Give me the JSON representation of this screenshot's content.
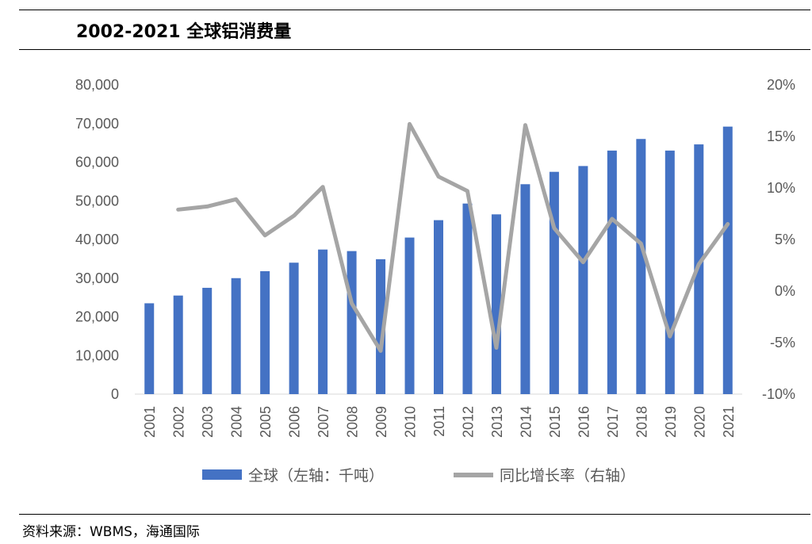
{
  "title": "2002-2021 全球铝消费量",
  "source": "资料来源：WBMS，海通国际",
  "colors": {
    "bar": "#4472C4",
    "line": "#A5A5A5",
    "tick": "#595959",
    "axis": "#D9D9D9"
  },
  "chart_data": {
    "type": "bar+line",
    "categories": [
      "2001",
      "2002",
      "2003",
      "2004",
      "2005",
      "2006",
      "2007",
      "2008",
      "2009",
      "2010",
      "2011",
      "2012",
      "2013",
      "2014",
      "2015",
      "2016",
      "2017",
      "2018",
      "2019",
      "2020",
      "2021"
    ],
    "series": [
      {
        "name": "全球（左轴：千吨）",
        "type": "bar",
        "axis": "left",
        "values": [
          23500,
          25500,
          27500,
          30000,
          31800,
          34000,
          37400,
          37000,
          34900,
          40500,
          45000,
          49300,
          46500,
          54300,
          57500,
          59000,
          63000,
          66000,
          63000,
          64600,
          69200
        ]
      },
      {
        "name": "同比增长率（右轴）",
        "type": "line",
        "axis": "right",
        "values": [
          null,
          7.9,
          8.2,
          8.9,
          5.4,
          7.3,
          10.1,
          -1.2,
          -5.8,
          16.2,
          11.1,
          9.7,
          -5.5,
          16.1,
          6.1,
          2.8,
          7.0,
          4.6,
          -4.4,
          2.6,
          6.5
        ]
      }
    ],
    "y_left": {
      "min": 0,
      "max": 80000,
      "ticks": [
        "0",
        "10,000",
        "20,000",
        "30,000",
        "40,000",
        "50,000",
        "60,000",
        "70,000",
        "80,000"
      ]
    },
    "y_right": {
      "min": -10,
      "max": 20,
      "ticks": [
        "-10%",
        "-5%",
        "0%",
        "5%",
        "10%",
        "15%",
        "20%"
      ]
    },
    "grid": false,
    "legend_position": "bottom"
  }
}
